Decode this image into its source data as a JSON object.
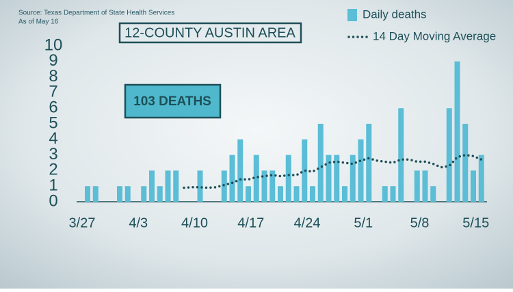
{
  "chart_data": {
    "type": "bar_line",
    "title": "12-COUNTY AUSTIN AREA",
    "source": "Source: Texas Department of State Health Services",
    "date_note": "As of May 16",
    "annotation": "103 DEATHS",
    "categories": [
      "3/27",
      null,
      null,
      null,
      null,
      null,
      null,
      "4/3",
      null,
      null,
      null,
      null,
      null,
      null,
      "4/10",
      null,
      null,
      null,
      null,
      null,
      null,
      "4/17",
      null,
      null,
      null,
      null,
      null,
      null,
      "4/24",
      null,
      null,
      null,
      null,
      null,
      null,
      "5/1",
      null,
      null,
      null,
      null,
      null,
      null,
      "5/8",
      null,
      null,
      null,
      null,
      null,
      null,
      "5/15"
    ],
    "series": [
      {
        "name": "Daily deaths",
        "color": "#5bbdd6",
        "kind": "bar",
        "values": [
          1,
          1,
          0,
          0,
          1,
          1,
          0,
          1,
          2,
          1,
          2,
          2,
          0,
          0,
          2,
          0,
          0,
          2,
          3,
          4,
          1,
          3,
          2,
          2,
          1,
          3,
          1,
          4,
          1,
          5,
          3,
          3,
          1,
          3,
          4,
          5,
          0,
          1,
          1,
          6,
          0,
          2,
          2,
          1,
          0,
          6,
          9,
          5,
          2,
          3
        ]
      },
      {
        "name": "14 Day Moving Average",
        "color": "#1e4f58",
        "kind": "line",
        "values": [
          null,
          null,
          null,
          null,
          null,
          null,
          null,
          null,
          null,
          null,
          null,
          null,
          0.9,
          0.93,
          0.93,
          0.9,
          0.93,
          1.07,
          1.21,
          1.43,
          1.43,
          1.57,
          1.64,
          1.71,
          1.64,
          1.71,
          1.71,
          2.0,
          1.93,
          2.21,
          2.5,
          2.57,
          2.5,
          2.43,
          2.64,
          2.79,
          2.64,
          2.57,
          2.5,
          2.71,
          2.71,
          2.57,
          2.57,
          2.43,
          2.21,
          2.29,
          2.86,
          3.0,
          2.93,
          2.71
        ]
      }
    ],
    "ylim": [
      0,
      10
    ],
    "yticks": [
      0,
      1,
      2,
      3,
      4,
      5,
      6,
      7,
      8,
      9,
      10
    ]
  }
}
